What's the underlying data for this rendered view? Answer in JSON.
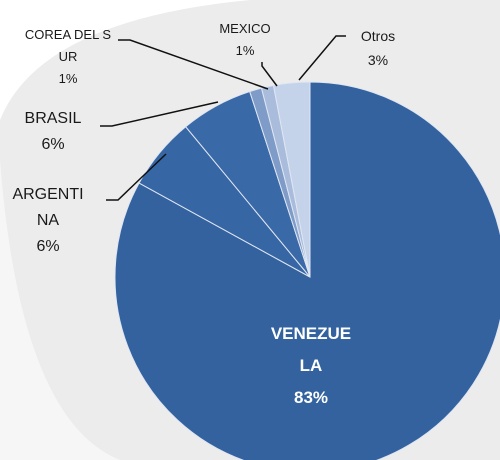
{
  "chart_data": {
    "type": "pie",
    "categories": [
      "VENEZUELA",
      "ARGENTINA",
      "BRASIL",
      "COREA DEL SUR",
      "MEXICO",
      "Otros"
    ],
    "values": [
      83,
      6,
      6,
      1,
      1,
      3
    ],
    "value_labels": [
      "83%",
      "6%",
      "6%",
      "1%",
      "1%",
      "3%"
    ],
    "colors": [
      "#33629f",
      "#3766a4",
      "#3a69a7",
      "#7f9cc8",
      "#a9bcdc",
      "#c5d3ea"
    ]
  }
}
